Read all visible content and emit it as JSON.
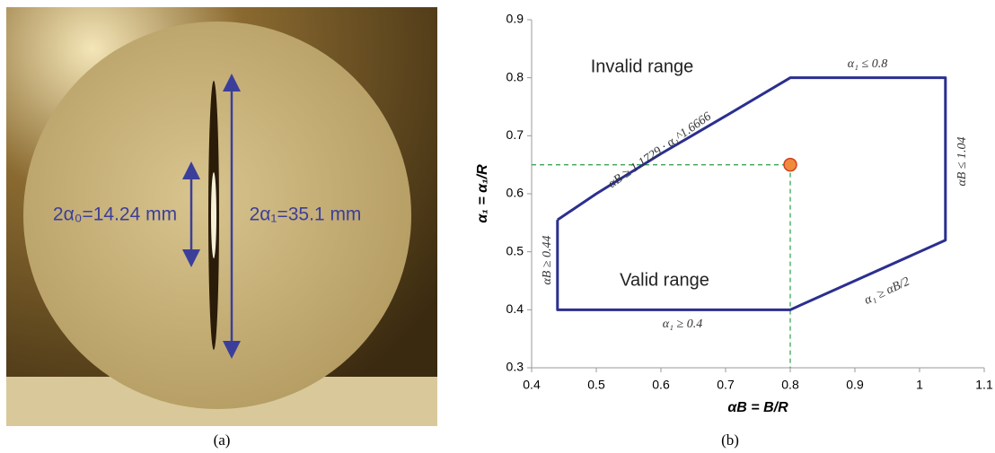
{
  "photo": {
    "labels": [
      "2α₀=14.24 mm",
      "2α₁=35.1 mm"
    ],
    "caption": "(a)"
  },
  "chart_data": {
    "type": "line",
    "caption": "(b)",
    "xlabel": "αB = B/R",
    "ylabel": "α₁ = α₁/R",
    "xlim": [
      0.4,
      1.1
    ],
    "ylim": [
      0.3,
      0.9
    ],
    "xticks": [
      0.4,
      0.5,
      0.6,
      0.7,
      0.8,
      0.9,
      1,
      1.1
    ],
    "yticks": [
      0.3,
      0.4,
      0.5,
      0.6,
      0.7,
      0.8,
      0.9
    ],
    "series": [
      {
        "color": "#2b2f8f",
        "x": [
          0.44,
          0.5,
          0.6,
          0.7,
          0.8,
          1.04,
          1.04,
          0.8,
          0.44,
          0.44
        ],
        "values": [
          0.555,
          0.6,
          0.669,
          0.734,
          0.8,
          0.8,
          0.52,
          0.4,
          0.4,
          0.555
        ]
      }
    ],
    "point": {
      "x": 0.8,
      "y": 0.65,
      "color": "#f08a3c",
      "guide_color": "#3aa655"
    },
    "annotations": [
      "Invalid range",
      "Valid range",
      "α₁ ≤ 0.8",
      "αB ≤ 1.04",
      "αB ≥ 1.1729 · α₁^1.6666",
      "αB ≥ 0.44",
      "α₁ ≥ 0.4",
      "α₁ ≥ αB/2"
    ]
  }
}
